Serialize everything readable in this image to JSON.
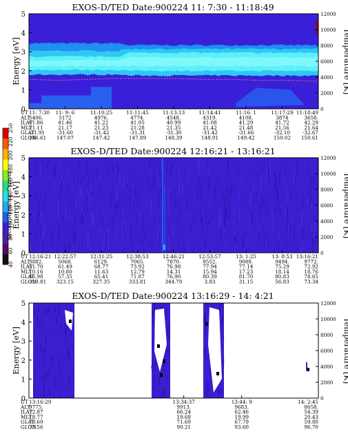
{
  "colors": {
    "background": "#ffffff",
    "spectrum_base": "#3a1fd9",
    "band_mid": "#1f8ff0",
    "band_light": "#2fc8f4",
    "band_core": "#5ef0f8",
    "dotted_line": "#ff9c6c",
    "colorbar": [
      "#1a0a1a",
      "#5a0a6a",
      "#4b1fa8",
      "#3a1fd9",
      "#1f60f0",
      "#1fa8f0",
      "#22e0e8",
      "#22e080",
      "#7ef020",
      "#ffff00",
      "#ffb000",
      "#ff5a00",
      "#e00000"
    ]
  },
  "colorbar": {
    "label": "Second Harmonic Current",
    "ticks": [
      "40",
      "60",
      "80",
      "100",
      "120",
      "140",
      "160",
      "180",
      "200",
      "220",
      "250"
    ]
  },
  "ephemeris_labels": [
    "UT",
    "ALT",
    "ILAT",
    "MLT",
    "GLAT",
    "GLON"
  ],
  "chart_data": [
    {
      "type": "heatmap",
      "title": "EXOS-D/TED   Date:900224   11: 7:30 - 11:18:49",
      "ylabel": "Energy [eV]",
      "ylabel_right": "Temperature [K]",
      "ylim": [
        0,
        5
      ],
      "ylim_right": [
        0,
        12000
      ],
      "yticks": [
        "0",
        "1",
        "2",
        "3",
        "4",
        "5"
      ],
      "yticks_right": [
        "0",
        "2000",
        "4000",
        "6000",
        "8000",
        "10000",
        "12000"
      ],
      "series": [
        {
          "name": "",
          "values": [
            1.55,
            1.5,
            1.55,
            1.6,
            1.6,
            1.6,
            1.55,
            1.55,
            1.5,
            1.5,
            1.45
          ]
        }
      ],
      "ephemeris": {
        "UT": [
          "11: 7:30",
          "11: 9: 6",
          "11:10:25",
          "11:11:45",
          "11:13:13",
          "11:14:41",
          "11:16: 1",
          "11:17:29",
          "11:18:49"
        ],
        "ALT": [
          "5406.",
          "5172",
          "4976.",
          "4774.",
          "4548.",
          "4319.",
          "4108.",
          "3874",
          "3658."
        ],
        "ILAT": [
          "41.86",
          "41.46",
          "41.22",
          "41.05",
          "40.99",
          "41.08",
          "41.29",
          "41.72",
          "42.29"
        ],
        "MLT": [
          "21.11",
          "21.17",
          "21.23",
          "21.28",
          "21.35",
          "21.42",
          "21.48",
          "21.56",
          "21.64"
        ],
        "GLAT": [
          "-31.91",
          "-31.60",
          "-31.42",
          "-31.31",
          "-31.30",
          "-31.42",
          "-31.66",
          "-32.10",
          "-32.67"
        ],
        "GLON": [
          "146.61",
          "147.07",
          "147.42",
          "147.89",
          "148.39",
          "148.91",
          "149.42",
          "150.02",
          "150.61"
        ]
      }
    },
    {
      "type": "heatmap",
      "title": "EXOS-D/TED   Date:900224   12:16:21 - 13:16:21",
      "ylabel": "Energy [eV]",
      "ylabel_right": "Temperature [K]",
      "ylim": [
        0,
        5
      ],
      "ylim_right": [
        0,
        12000
      ],
      "yticks": [
        "0",
        "1",
        "2",
        "3",
        "4",
        "5"
      ],
      "yticks_right": [
        "0",
        "2000",
        "4000",
        "6000",
        "8000",
        "10000",
        "12000"
      ],
      "ephemeris": {
        "UT": [
          "12:16:21",
          "12:22:57",
          "12:31:25",
          "12:38:53",
          "12:46:21",
          "12:53:57",
          "13: 1:25",
          "13: 8:53",
          "13:16:21"
        ],
        "ALT": [
          "3882.",
          "5068.",
          "6129.",
          "7065.",
          "7870.",
          "8552.",
          "9088.",
          "9494.",
          "9772."
        ],
        "ILAT": [
          "51.70",
          "61.49",
          "68.77",
          "73.92",
          "76.98",
          "77.94",
          "77.14",
          "75.29",
          "72.92"
        ],
        "MLT": [
          "10.16",
          "10.80",
          "11.63",
          "12.79",
          "14.31",
          "15.94",
          "17.23",
          "18.14",
          "18.76"
        ],
        "GLAT": [
          "46.98",
          "57.35",
          "65.41",
          "71.87",
          "76.90",
          "80.39",
          "81.70",
          "80.83",
          "78.65"
        ],
        "GLON": [
          "319.81",
          "323.15",
          "327.35",
          "333.81",
          "344.70",
          "3.83",
          "31.15",
          "56.83",
          "73.34"
        ]
      }
    },
    {
      "type": "heatmap",
      "title": "EXOS-D/TED   Date:900224   13:16:29 - 14: 4:21",
      "ylabel": "Energy [eV]",
      "ylabel_right": "Temperature [K]",
      "ylim": [
        0,
        5
      ],
      "ylim_right": [
        0,
        12000
      ],
      "yticks": [
        "0",
        "1",
        "2",
        "3",
        "4",
        "5"
      ],
      "yticks_right": [
        "0",
        "2000",
        "4000",
        "6000",
        "8000",
        "10000",
        "12000"
      ],
      "ephemeris": {
        "UT": [
          "13:16:29",
          "13:34:37",
          "13:44: 9",
          "14: 2:45"
        ],
        "ALT": [
          "9775.",
          "9913.",
          "9683.",
          "8658."
        ],
        "ILAT": [
          "72.87",
          "66.24",
          "62.46",
          "54.39"
        ],
        "MLT": [
          "18.77",
          "19.68",
          "19.99",
          "20.43"
        ],
        "GLAT": [
          "78.60",
          "71.69",
          "67.79",
          "59.80"
        ],
        "GLON": [
          "73.56",
          "90.21",
          "93.60",
          "96.70"
        ]
      }
    }
  ]
}
